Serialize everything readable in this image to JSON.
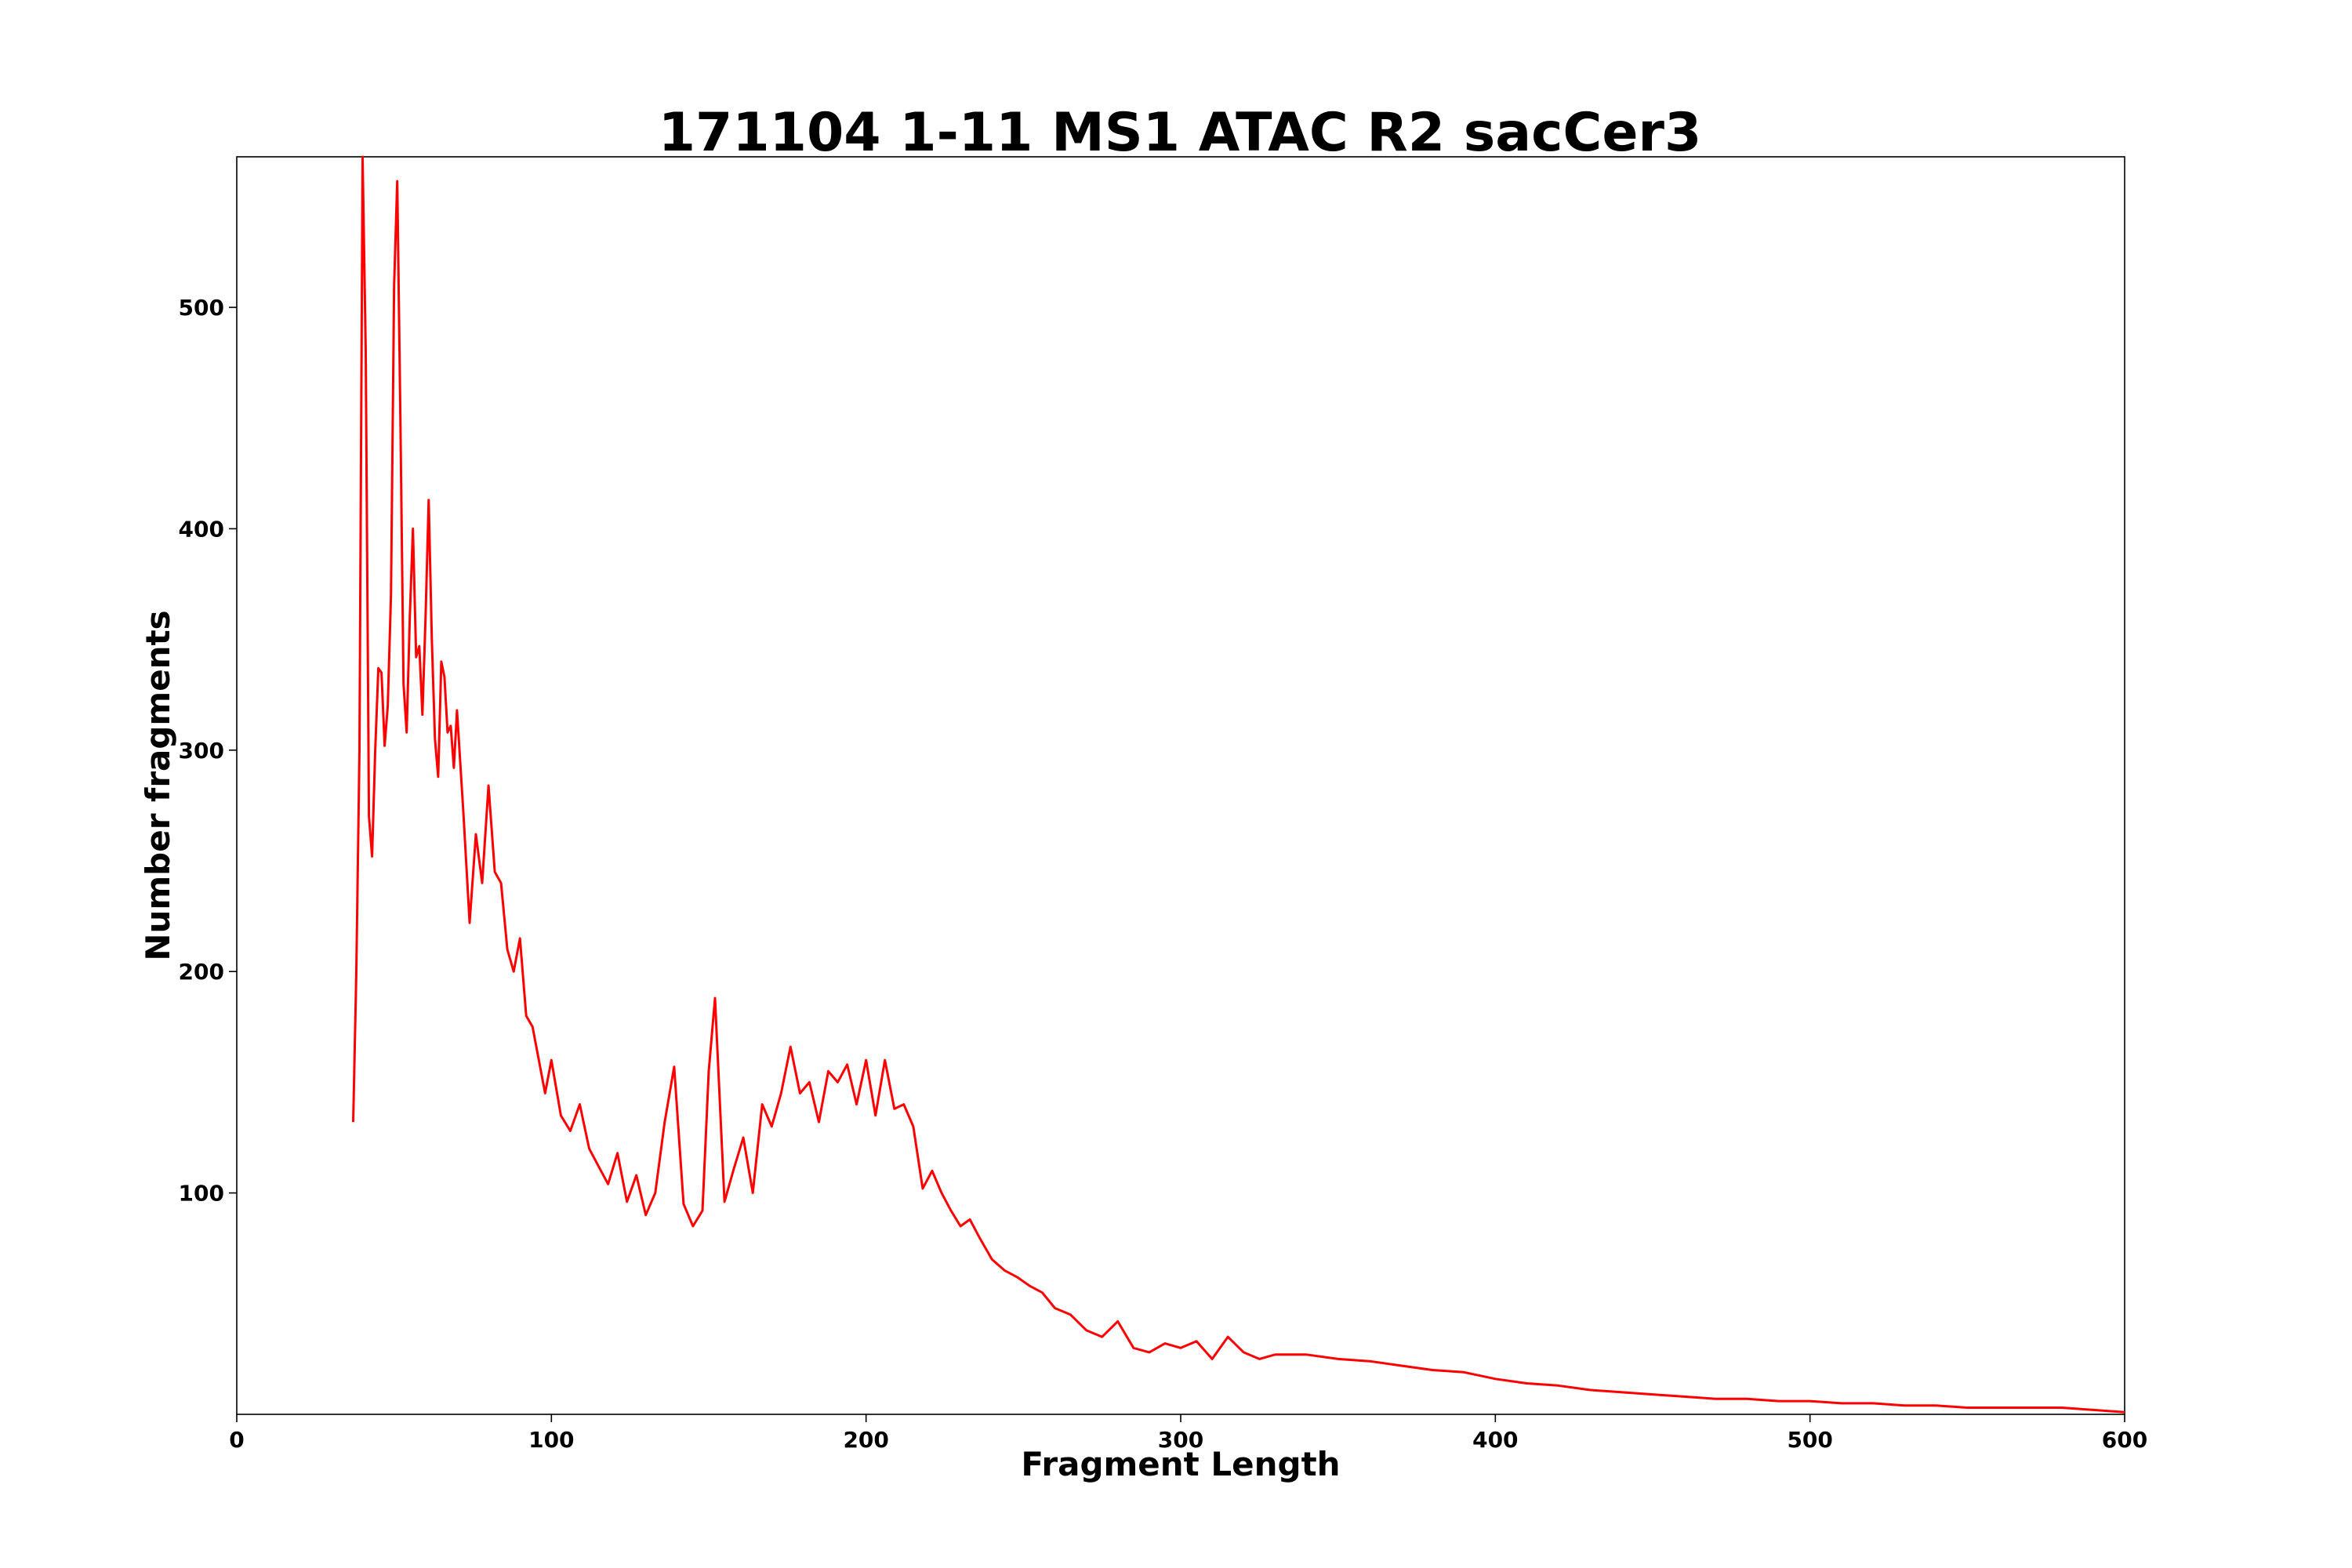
{
  "chart_data": {
    "type": "line",
    "title": "171104 1-11 MS1 ATAC R2 sacCer3",
    "xlabel": "Fragment Length",
    "ylabel": "Number fragments",
    "xlim": [
      0,
      600
    ],
    "ylim": [
      0,
      568
    ],
    "xticks": [
      0,
      100,
      200,
      300,
      400,
      500,
      600
    ],
    "yticks": [
      100,
      200,
      300,
      400,
      500
    ],
    "grid": false,
    "series": [
      {
        "color": "#ff0000",
        "x": [
          37,
          38,
          39,
          40,
          41,
          42,
          43,
          44,
          45,
          46,
          47,
          48,
          49,
          50,
          51,
          52,
          53,
          54,
          55,
          56,
          57,
          58,
          59,
          60,
          61,
          62,
          63,
          64,
          65,
          66,
          67,
          68,
          69,
          70,
          72,
          74,
          76,
          78,
          80,
          82,
          84,
          86,
          88,
          90,
          92,
          94,
          96,
          98,
          100,
          103,
          106,
          109,
          112,
          115,
          118,
          121,
          124,
          127,
          130,
          133,
          136,
          139,
          142,
          145,
          148,
          150,
          152,
          155,
          158,
          161,
          164,
          167,
          170,
          173,
          176,
          179,
          182,
          185,
          188,
          191,
          194,
          197,
          200,
          203,
          206,
          209,
          212,
          215,
          218,
          221,
          224,
          227,
          230,
          233,
          236,
          240,
          244,
          248,
          252,
          256,
          260,
          265,
          270,
          275,
          280,
          285,
          290,
          295,
          300,
          305,
          310,
          315,
          320,
          325,
          330,
          340,
          350,
          360,
          370,
          380,
          390,
          400,
          410,
          420,
          430,
          440,
          450,
          460,
          470,
          480,
          490,
          500,
          510,
          520,
          530,
          540,
          550,
          560,
          570,
          580,
          590,
          600
        ],
        "y": [
          132,
          200,
          300,
          568,
          480,
          270,
          252,
          300,
          337,
          335,
          302,
          320,
          370,
          510,
          557,
          450,
          330,
          308,
          360,
          400,
          342,
          347,
          316,
          360,
          413,
          350,
          305,
          288,
          340,
          333,
          308,
          311,
          292,
          318,
          272,
          222,
          262,
          240,
          284,
          245,
          240,
          210,
          200,
          215,
          180,
          175,
          160,
          145,
          160,
          135,
          128,
          140,
          120,
          112,
          104,
          118,
          96,
          108,
          90,
          100,
          132,
          157,
          95,
          85,
          92,
          155,
          188,
          96,
          111,
          125,
          100,
          140,
          130,
          145,
          166,
          145,
          150,
          132,
          155,
          150,
          158,
          140,
          160,
          135,
          160,
          138,
          140,
          130,
          102,
          110,
          100,
          92,
          85,
          88,
          80,
          70,
          65,
          62,
          58,
          55,
          48,
          45,
          38,
          35,
          42,
          30,
          28,
          32,
          30,
          33,
          25,
          35,
          28,
          25,
          27,
          27,
          25,
          24,
          22,
          20,
          19,
          16,
          14,
          13,
          11,
          10,
          9,
          8,
          7,
          7,
          6,
          6,
          5,
          5,
          4,
          4,
          3,
          3,
          3,
          3,
          2,
          1
        ]
      }
    ]
  }
}
